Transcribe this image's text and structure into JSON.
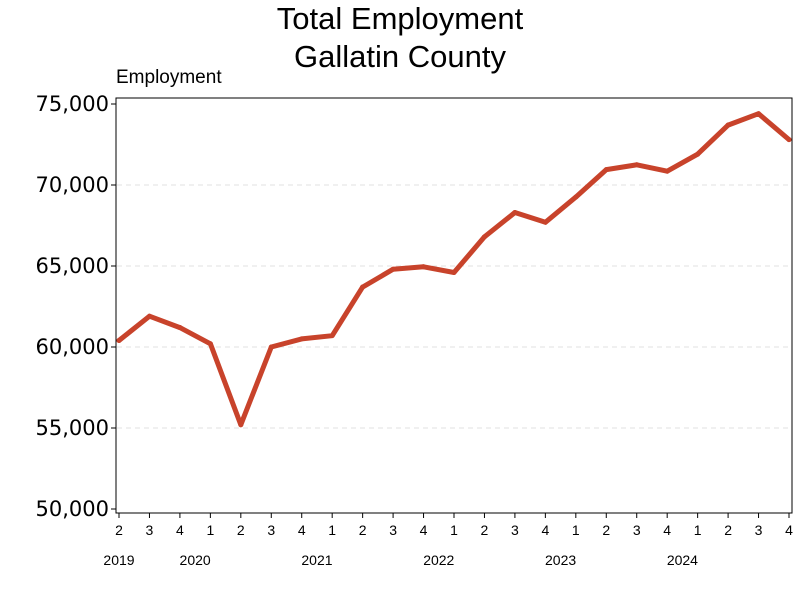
{
  "chart_data": {
    "type": "line",
    "title": [
      "Total Employment",
      "Gallatin County"
    ],
    "ylabel": "Employment",
    "xlabel": "",
    "ylim": [
      50000,
      75000
    ],
    "y_ticks": [
      50000,
      55000,
      60000,
      65000,
      70000,
      75000
    ],
    "y_tick_labels": [
      "50,000",
      "55,000",
      "60,000",
      "65,000",
      "70,000",
      "75,000"
    ],
    "grid": "horizontal dashed",
    "x": [
      "2019 Q2",
      "2019 Q3",
      "2019 Q4",
      "2020 Q1",
      "2020 Q2",
      "2020 Q3",
      "2020 Q4",
      "2021 Q1",
      "2021 Q2",
      "2021 Q3",
      "2021 Q4",
      "2022 Q1",
      "2022 Q2",
      "2022 Q3",
      "2022 Q4",
      "2023 Q1",
      "2023 Q2",
      "2023 Q3",
      "2023 Q4",
      "2024 Q1",
      "2024 Q2",
      "2024 Q3",
      "2024 Q4"
    ],
    "quarter_labels": [
      "2",
      "3",
      "4",
      "1",
      "2",
      "3",
      "4",
      "1",
      "2",
      "3",
      "4",
      "1",
      "2",
      "3",
      "4",
      "1",
      "2",
      "3",
      "4",
      "1",
      "2",
      "3",
      "4"
    ],
    "year_labels": [
      {
        "label": "2019",
        "start_index": 0,
        "end_index": 0
      },
      {
        "label": "2020",
        "start_index": 1,
        "end_index": 4
      },
      {
        "label": "2021",
        "start_index": 5,
        "end_index": 8
      },
      {
        "label": "2022",
        "start_index": 9,
        "end_index": 12
      },
      {
        "label": "2023",
        "start_index": 13,
        "end_index": 16
      },
      {
        "label": "2024",
        "start_index": 17,
        "end_index": 20
      }
    ],
    "series": [
      {
        "values": [
          60400,
          61900,
          61200,
          60200,
          55200,
          60000,
          60500,
          60700,
          63700,
          64800,
          64950,
          64600,
          66800,
          68300,
          67700,
          69250,
          70950,
          71250,
          70850,
          71900,
          73700,
          74400,
          72800
        ],
        "color": "#c8432b"
      }
    ]
  }
}
